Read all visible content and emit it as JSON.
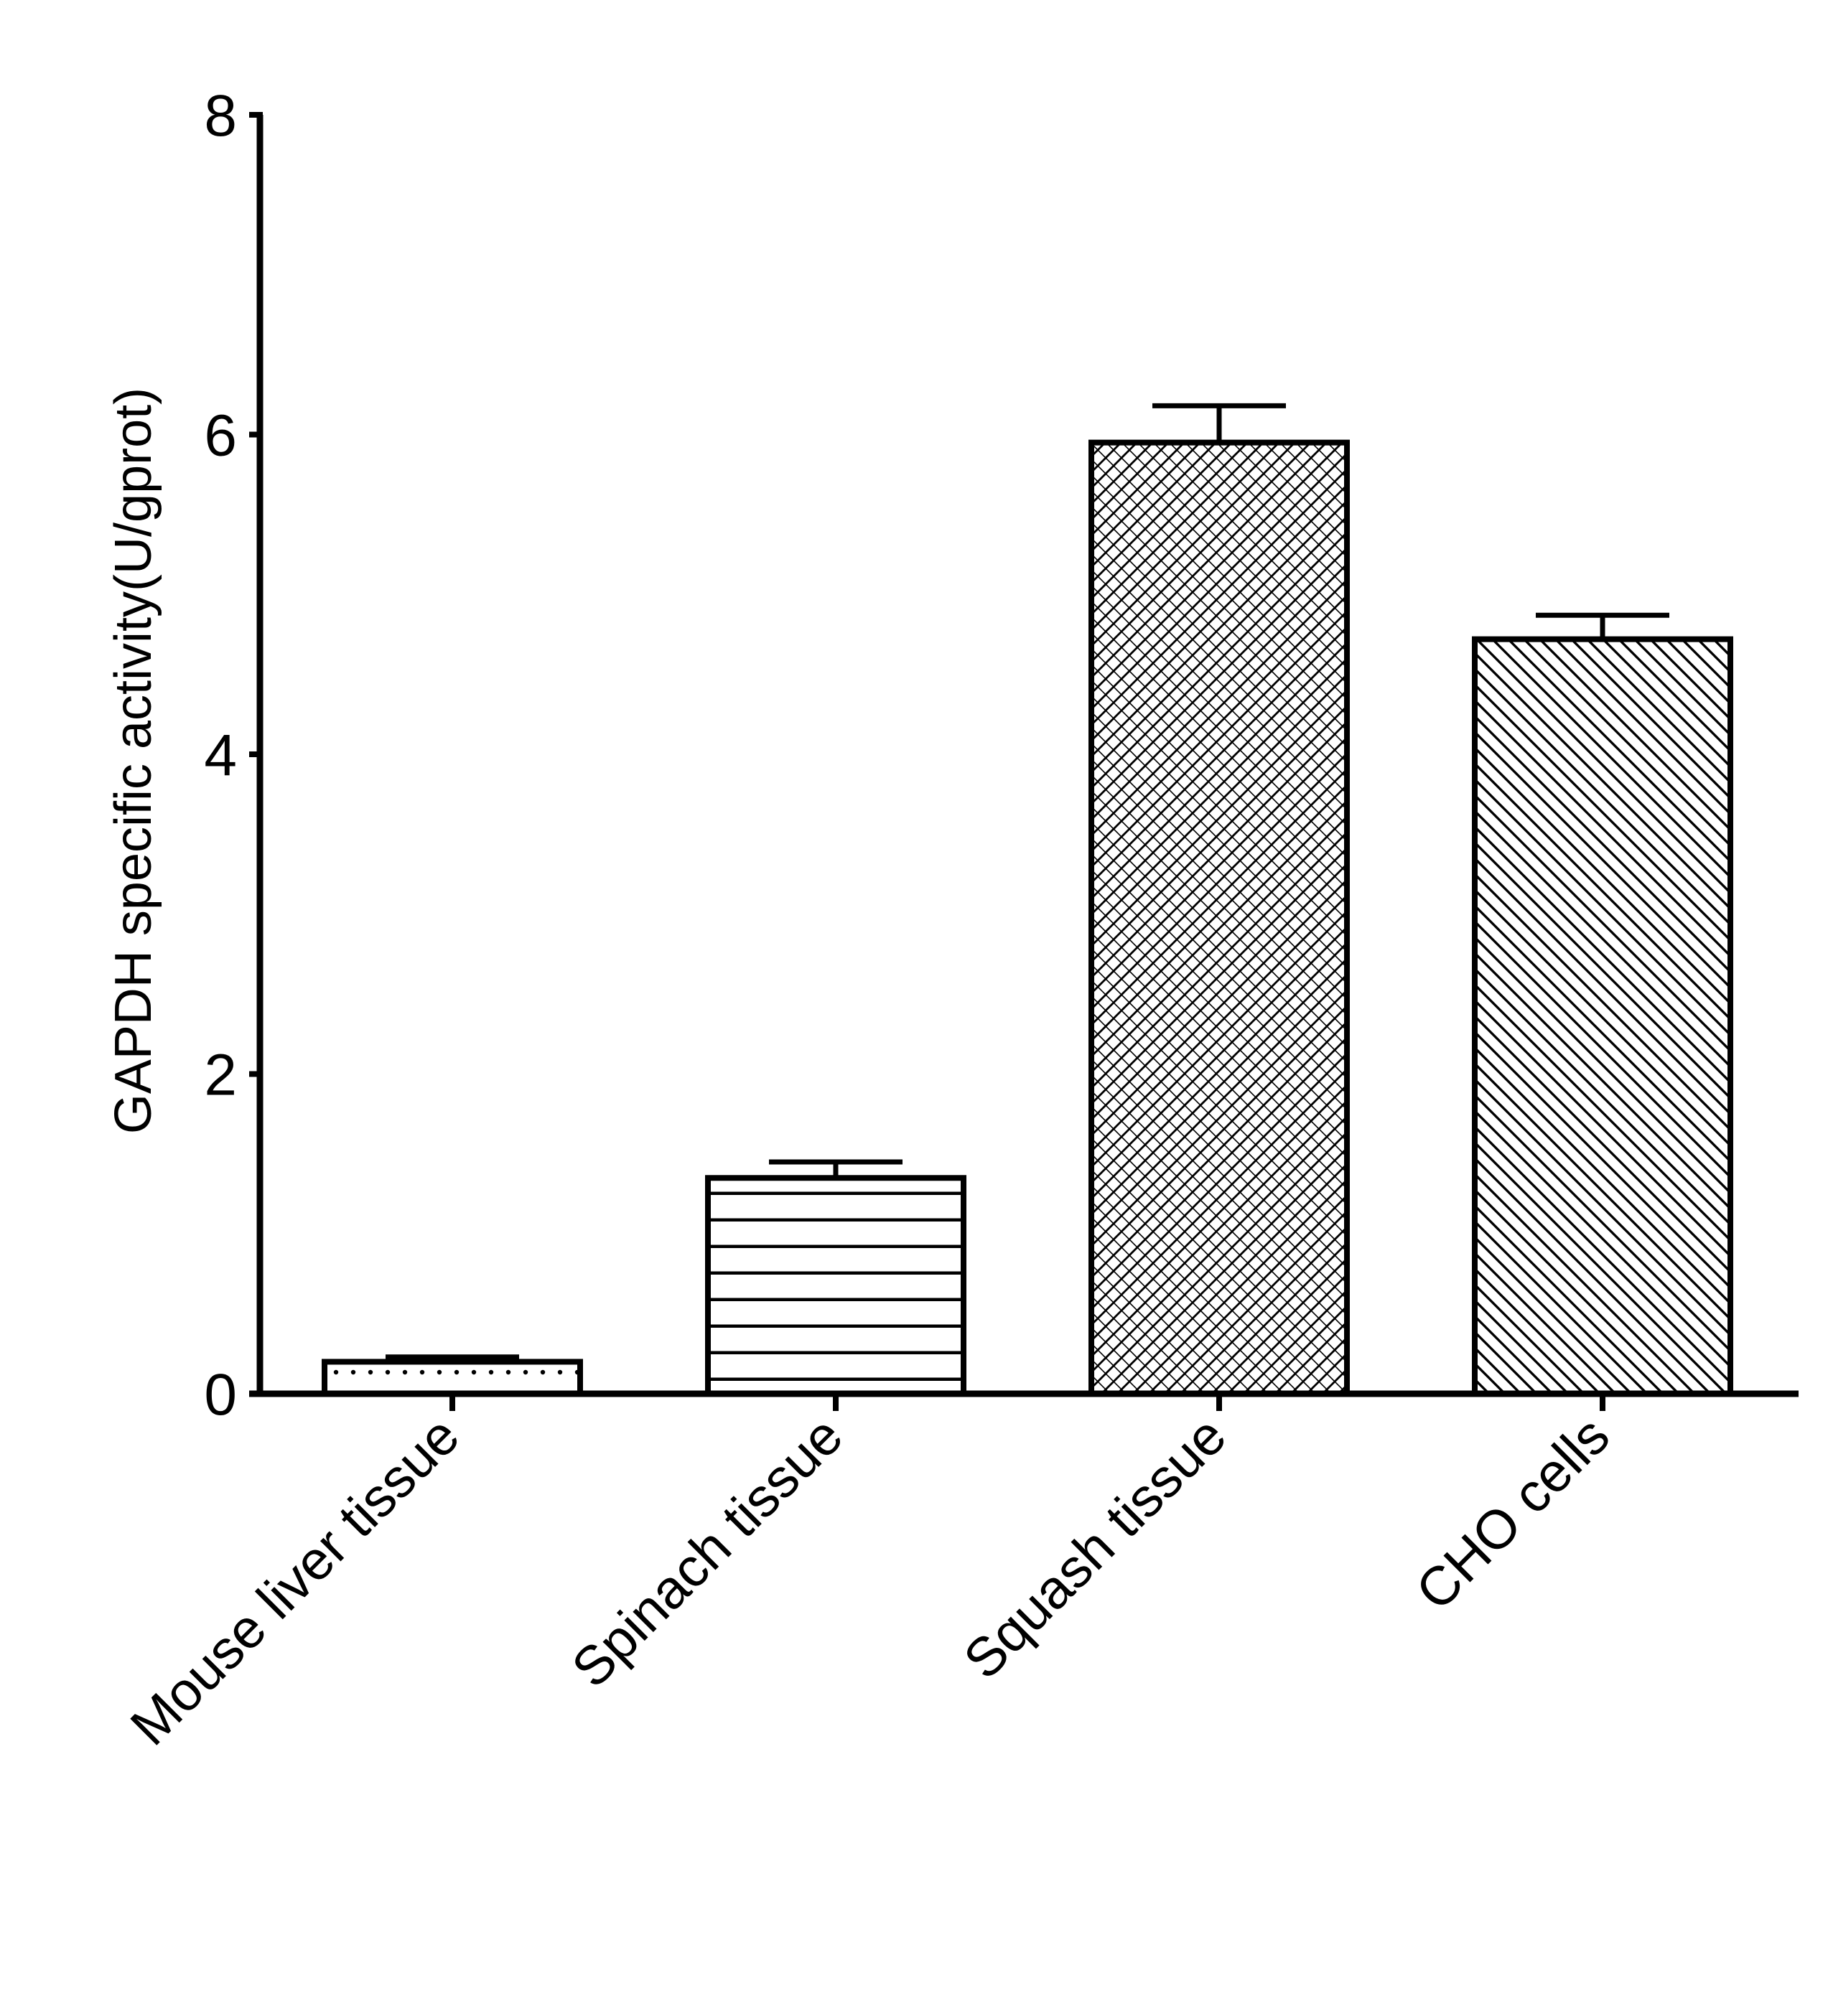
{
  "chart_data": {
    "type": "bar",
    "title": "",
    "xlabel": "",
    "ylabel": "GAPDH specific activity(U/gprot)",
    "ylim": [
      0,
      8
    ],
    "yticks": [
      0,
      2,
      4,
      6,
      8
    ],
    "grid": false,
    "legend": "none",
    "categories": [
      "Mouse liver tissue",
      "Spinach tissue",
      "Squash tissue",
      "CHO cells"
    ],
    "values": [
      0.2,
      1.35,
      5.95,
      4.72
    ],
    "errors": [
      0.03,
      0.1,
      0.23,
      0.15
    ],
    "patterns": [
      "dots",
      "horizontal-lines",
      "crosshatch",
      "diagonal-lines"
    ],
    "colors": {
      "bar_fill": "#ffffff",
      "bar_stroke": "#000000",
      "axis": "#000000"
    }
  }
}
